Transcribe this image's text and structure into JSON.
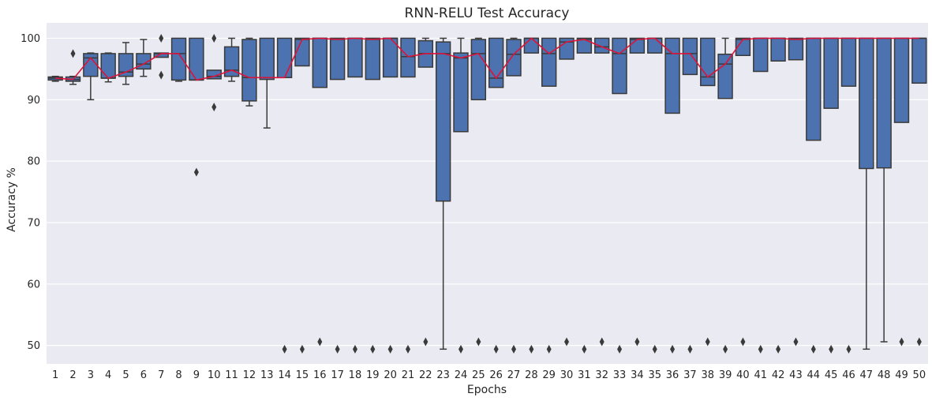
{
  "chart_data": {
    "type": "box",
    "title": "RNN-RELU Test Accuracy",
    "xlabel": "Epochs",
    "ylabel": "Accuracy %",
    "ylim": [
      47,
      102.5
    ],
    "yticks": [
      50,
      60,
      70,
      80,
      90,
      100
    ],
    "grid": true,
    "background": "#eaeaf2",
    "box_color": "#4c72b0",
    "line_color": "#dc143c",
    "categories": [
      "1",
      "2",
      "3",
      "4",
      "5",
      "6",
      "7",
      "8",
      "9",
      "10",
      "11",
      "12",
      "13",
      "14",
      "15",
      "16",
      "17",
      "18",
      "19",
      "20",
      "21",
      "22",
      "23",
      "24",
      "25",
      "26",
      "27",
      "28",
      "29",
      "30",
      "31",
      "32",
      "33",
      "34",
      "35",
      "36",
      "37",
      "38",
      "39",
      "40",
      "41",
      "42",
      "43",
      "44",
      "45",
      "46",
      "47",
      "48",
      "49",
      "50"
    ],
    "boxes": [
      {
        "q1": 93.2,
        "median": 93.5,
        "q3": 93.7,
        "whislo": 93.0,
        "whishi": 93.8,
        "fliers": []
      },
      {
        "q1": 93.0,
        "median": 93.3,
        "q3": 93.7,
        "whislo": 92.5,
        "whishi": 93.8,
        "fliers": [
          97.5
        ]
      },
      {
        "q1": 93.8,
        "median": 96.8,
        "q3": 97.5,
        "whislo": 90.0,
        "whishi": 97.6,
        "fliers": []
      },
      {
        "q1": 93.5,
        "median": 93.5,
        "q3": 97.5,
        "whislo": 92.9,
        "whishi": 97.6,
        "fliers": []
      },
      {
        "q1": 93.8,
        "median": 94.5,
        "q3": 97.5,
        "whislo": 92.5,
        "whishi": 99.3,
        "fliers": []
      },
      {
        "q1": 95.0,
        "median": 95.8,
        "q3": 97.5,
        "whislo": 93.8,
        "whishi": 99.8,
        "fliers": []
      },
      {
        "q1": 96.9,
        "median": 97.5,
        "q3": 97.6,
        "whislo": 96.9,
        "whishi": 97.6,
        "fliers": [
          100.0,
          94.0
        ]
      },
      {
        "q1": 93.2,
        "median": 97.5,
        "q3": 100.0,
        "whislo": 93.0,
        "whishi": 100.0,
        "fliers": []
      },
      {
        "q1": 93.2,
        "median": 93.2,
        "q3": 100.0,
        "whislo": 93.2,
        "whishi": 100.0,
        "fliers": [
          78.2
        ]
      },
      {
        "q1": 93.4,
        "median": 93.8,
        "q3": 94.8,
        "whislo": 93.4,
        "whishi": 94.8,
        "fliers": [
          100.0,
          88.8
        ]
      },
      {
        "q1": 93.8,
        "median": 94.8,
        "q3": 98.6,
        "whislo": 93.0,
        "whishi": 100.0,
        "fliers": []
      },
      {
        "q1": 89.8,
        "median": 93.6,
        "q3": 99.8,
        "whislo": 89.0,
        "whishi": 100.0,
        "fliers": []
      },
      {
        "q1": 93.3,
        "median": 93.6,
        "q3": 100.0,
        "whislo": 85.4,
        "whishi": 100.0,
        "fliers": []
      },
      {
        "q1": 93.6,
        "median": 93.6,
        "q3": 100.0,
        "whislo": 93.6,
        "whishi": 100.0,
        "fliers": [
          49.4
        ]
      },
      {
        "q1": 95.5,
        "median": 99.8,
        "q3": 100.0,
        "whislo": 95.5,
        "whishi": 100.0,
        "fliers": [
          49.4
        ]
      },
      {
        "q1": 92.0,
        "median": 100.0,
        "q3": 100.0,
        "whislo": 92.0,
        "whishi": 100.0,
        "fliers": [
          50.6
        ]
      },
      {
        "q1": 93.3,
        "median": 99.8,
        "q3": 100.0,
        "whislo": 93.3,
        "whishi": 100.0,
        "fliers": [
          49.4
        ]
      },
      {
        "q1": 93.7,
        "median": 100.0,
        "q3": 100.0,
        "whislo": 93.7,
        "whishi": 100.0,
        "fliers": [
          49.4
        ]
      },
      {
        "q1": 93.3,
        "median": 99.8,
        "q3": 100.0,
        "whislo": 93.3,
        "whishi": 100.0,
        "fliers": [
          49.4
        ]
      },
      {
        "q1": 93.7,
        "median": 100.0,
        "q3": 100.0,
        "whislo": 93.7,
        "whishi": 100.0,
        "fliers": [
          49.4
        ]
      },
      {
        "q1": 93.7,
        "median": 97.0,
        "q3": 100.0,
        "whislo": 93.7,
        "whishi": 100.0,
        "fliers": [
          49.4
        ]
      },
      {
        "q1": 95.3,
        "median": 97.5,
        "q3": 99.6,
        "whislo": 95.3,
        "whishi": 100.0,
        "fliers": [
          50.6
        ]
      },
      {
        "q1": 73.5,
        "median": 97.5,
        "q3": 99.4,
        "whislo": 49.4,
        "whishi": 100.0,
        "fliers": []
      },
      {
        "q1": 84.8,
        "median": 96.8,
        "q3": 97.6,
        "whislo": 84.8,
        "whishi": 100.0,
        "fliers": [
          49.4
        ]
      },
      {
        "q1": 90.0,
        "median": 97.5,
        "q3": 99.8,
        "whislo": 90.0,
        "whishi": 100.0,
        "fliers": [
          50.6
        ]
      },
      {
        "q1": 92.0,
        "median": 93.5,
        "q3": 100.0,
        "whislo": 92.0,
        "whishi": 100.0,
        "fliers": [
          49.4
        ]
      },
      {
        "q1": 93.9,
        "median": 97.4,
        "q3": 99.8,
        "whislo": 93.9,
        "whishi": 100.0,
        "fliers": [
          49.4
        ]
      },
      {
        "q1": 97.6,
        "median": 100.0,
        "q3": 100.0,
        "whislo": 97.6,
        "whishi": 100.0,
        "fliers": [
          49.4
        ]
      },
      {
        "q1": 92.2,
        "median": 97.5,
        "q3": 100.0,
        "whislo": 92.2,
        "whishi": 100.0,
        "fliers": [
          49.4
        ]
      },
      {
        "q1": 96.6,
        "median": 99.4,
        "q3": 100.0,
        "whislo": 96.6,
        "whishi": 100.0,
        "fliers": [
          50.6
        ]
      },
      {
        "q1": 97.6,
        "median": 99.8,
        "q3": 100.0,
        "whislo": 97.6,
        "whishi": 100.0,
        "fliers": [
          49.4
        ]
      },
      {
        "q1": 97.6,
        "median": 98.6,
        "q3": 100.0,
        "whislo": 97.6,
        "whishi": 100.0,
        "fliers": [
          50.6
        ]
      },
      {
        "q1": 91.0,
        "median": 97.5,
        "q3": 100.0,
        "whislo": 91.0,
        "whishi": 100.0,
        "fliers": [
          49.4
        ]
      },
      {
        "q1": 97.6,
        "median": 99.8,
        "q3": 100.0,
        "whislo": 97.6,
        "whishi": 100.0,
        "fliers": [
          50.6
        ]
      },
      {
        "q1": 97.6,
        "median": 100.0,
        "q3": 100.0,
        "whislo": 97.6,
        "whishi": 100.0,
        "fliers": [
          49.4
        ]
      },
      {
        "q1": 87.8,
        "median": 97.5,
        "q3": 100.0,
        "whislo": 87.8,
        "whishi": 100.0,
        "fliers": [
          49.4
        ]
      },
      {
        "q1": 94.1,
        "median": 97.5,
        "q3": 100.0,
        "whislo": 94.1,
        "whishi": 100.0,
        "fliers": [
          49.4
        ]
      },
      {
        "q1": 92.3,
        "median": 93.7,
        "q3": 100.0,
        "whislo": 92.3,
        "whishi": 100.0,
        "fliers": [
          50.6
        ]
      },
      {
        "q1": 90.2,
        "median": 95.8,
        "q3": 97.4,
        "whislo": 90.2,
        "whishi": 100.0,
        "fliers": [
          49.4
        ]
      },
      {
        "q1": 97.2,
        "median": 99.8,
        "q3": 100.0,
        "whislo": 97.2,
        "whishi": 100.0,
        "fliers": [
          50.6
        ]
      },
      {
        "q1": 94.6,
        "median": 100.0,
        "q3": 100.0,
        "whislo": 94.6,
        "whishi": 100.0,
        "fliers": [
          49.4
        ]
      },
      {
        "q1": 96.3,
        "median": 100.0,
        "q3": 100.0,
        "whislo": 96.3,
        "whishi": 100.0,
        "fliers": [
          49.4
        ]
      },
      {
        "q1": 96.5,
        "median": 99.8,
        "q3": 100.0,
        "whislo": 96.5,
        "whishi": 100.0,
        "fliers": [
          50.6
        ]
      },
      {
        "q1": 83.4,
        "median": 100.0,
        "q3": 100.0,
        "whislo": 83.4,
        "whishi": 100.0,
        "fliers": [
          49.4
        ]
      },
      {
        "q1": 88.6,
        "median": 100.0,
        "q3": 100.0,
        "whislo": 88.6,
        "whishi": 100.0,
        "fliers": [
          49.4
        ]
      },
      {
        "q1": 92.2,
        "median": 100.0,
        "q3": 100.0,
        "whislo": 92.2,
        "whishi": 100.0,
        "fliers": [
          49.4
        ]
      },
      {
        "q1": 78.8,
        "median": 100.0,
        "q3": 100.0,
        "whislo": 49.4,
        "whishi": 100.0,
        "fliers": []
      },
      {
        "q1": 78.9,
        "median": 100.0,
        "q3": 100.0,
        "whislo": 50.6,
        "whishi": 100.0,
        "fliers": []
      },
      {
        "q1": 86.3,
        "median": 100.0,
        "q3": 100.0,
        "whislo": 86.3,
        "whishi": 100.0,
        "fliers": [
          50.6
        ]
      },
      {
        "q1": 92.7,
        "median": 100.0,
        "q3": 100.0,
        "whislo": 92.7,
        "whishi": 100.0,
        "fliers": [
          50.6
        ]
      }
    ]
  }
}
